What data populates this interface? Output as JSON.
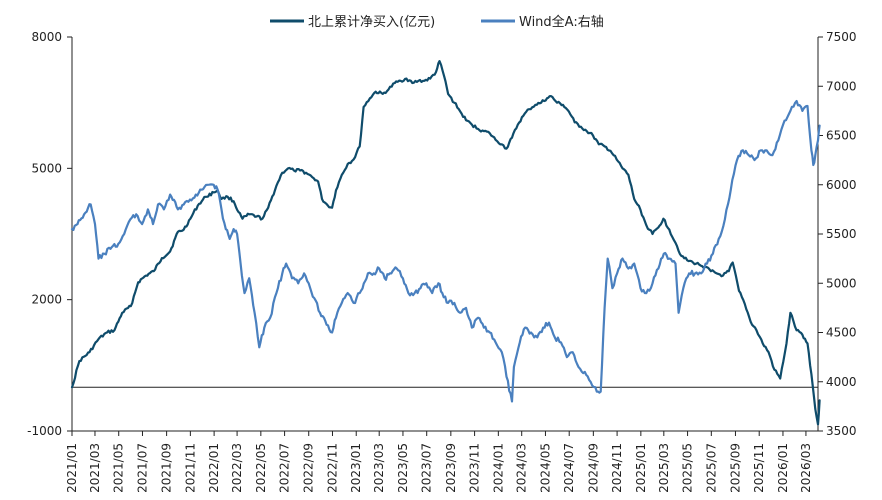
{
  "chart_data": {
    "type": "line",
    "title": "",
    "xlabel": "",
    "ylabel": "",
    "legend_position": "top-center",
    "grid": false,
    "x_start": "2021/01",
    "x_end": "2026/04",
    "x_ticks": [
      "2021/01",
      "2021/03",
      "2021/05",
      "2021/07",
      "2021/09",
      "2021/11",
      "2022/01",
      "2022/03",
      "2022/05",
      "2022/07",
      "2022/09",
      "2022/11",
      "2023/01",
      "2023/03",
      "2023/05",
      "2023/07",
      "2023/09",
      "2023/11",
      "2024/01",
      "2024/03",
      "2024/05",
      "2024/07",
      "2024/09",
      "2024/11",
      "2025/01",
      "2025/03",
      "2025/05",
      "2025/07",
      "2025/09",
      "2025/11",
      "2026/01",
      "2026/03"
    ],
    "y_left": {
      "min": -1000,
      "max": 8000,
      "ticks": [
        -1000,
        2000,
        5000,
        8000
      ]
    },
    "y_right": {
      "min": 3500,
      "max": 7500,
      "ticks": [
        3500,
        4000,
        4500,
        5000,
        5500,
        6000,
        6500,
        7000,
        7500
      ]
    },
    "zero_line": 0,
    "series": [
      {
        "name": "北上累计净买入(亿元)",
        "axis": "left",
        "color": "#0f4c6b",
        "points": [
          [
            "2021-01-01",
            0
          ],
          [
            "2021-01-20",
            600
          ],
          [
            "2021-02-15",
            800
          ],
          [
            "2021-03-10",
            1100
          ],
          [
            "2021-04-01",
            1250
          ],
          [
            "2021-04-20",
            1300
          ],
          [
            "2021-05-10",
            1700
          ],
          [
            "2021-06-01",
            1850
          ],
          [
            "2021-06-20",
            2400
          ],
          [
            "2021-07-10",
            2550
          ],
          [
            "2021-07-30",
            2650
          ],
          [
            "2021-08-20",
            2950
          ],
          [
            "2021-09-10",
            3100
          ],
          [
            "2021-09-30",
            3550
          ],
          [
            "2021-10-15",
            3600
          ],
          [
            "2021-11-01",
            3850
          ],
          [
            "2021-11-20",
            4150
          ],
          [
            "2021-12-10",
            4350
          ],
          [
            "2021-12-31",
            4450
          ],
          [
            "2022-01-10",
            4500
          ],
          [
            "2022-01-20",
            4300
          ],
          [
            "2022-02-05",
            4350
          ],
          [
            "2022-02-20",
            4250
          ],
          [
            "2022-03-05",
            4000
          ],
          [
            "2022-03-15",
            3850
          ],
          [
            "2022-04-01",
            3950
          ],
          [
            "2022-04-20",
            3900
          ],
          [
            "2022-05-05",
            3850
          ],
          [
            "2022-05-20",
            4100
          ],
          [
            "2022-06-10",
            4600
          ],
          [
            "2022-06-25",
            4900
          ],
          [
            "2022-07-10",
            5000
          ],
          [
            "2022-07-25",
            4950
          ],
          [
            "2022-08-10",
            4950
          ],
          [
            "2022-08-25",
            4900
          ],
          [
            "2022-09-10",
            4800
          ],
          [
            "2022-09-25",
            4700
          ],
          [
            "2022-10-05",
            4300
          ],
          [
            "2022-10-20",
            4150
          ],
          [
            "2022-10-31",
            4100
          ],
          [
            "2022-11-10",
            4500
          ],
          [
            "2022-11-25",
            4850
          ],
          [
            "2022-12-10",
            5100
          ],
          [
            "2022-12-25",
            5200
          ],
          [
            "2023-01-10",
            5500
          ],
          [
            "2023-01-20",
            6400
          ],
          [
            "2023-02-05",
            6600
          ],
          [
            "2023-02-20",
            6750
          ],
          [
            "2023-03-10",
            6700
          ],
          [
            "2023-03-25",
            6800
          ],
          [
            "2023-04-10",
            6950
          ],
          [
            "2023-04-25",
            7000
          ],
          [
            "2023-05-10",
            7050
          ],
          [
            "2023-05-25",
            6950
          ],
          [
            "2023-06-10",
            7000
          ],
          [
            "2023-06-25",
            7000
          ],
          [
            "2023-07-10",
            7050
          ],
          [
            "2023-07-25",
            7200
          ],
          [
            "2023-08-03",
            7450
          ],
          [
            "2023-08-15",
            7100
          ],
          [
            "2023-08-25",
            6700
          ],
          [
            "2023-09-10",
            6500
          ],
          [
            "2023-09-25",
            6300
          ],
          [
            "2023-10-10",
            6100
          ],
          [
            "2023-10-25",
            6000
          ],
          [
            "2023-11-10",
            5900
          ],
          [
            "2023-11-25",
            5850
          ],
          [
            "2023-12-10",
            5800
          ],
          [
            "2023-12-25",
            5650
          ],
          [
            "2024-01-10",
            5550
          ],
          [
            "2024-01-22",
            5450
          ],
          [
            "2024-02-05",
            5700
          ],
          [
            "2024-02-20",
            6000
          ],
          [
            "2024-03-05",
            6200
          ],
          [
            "2024-03-20",
            6350
          ],
          [
            "2024-04-05",
            6450
          ],
          [
            "2024-04-20",
            6500
          ],
          [
            "2024-05-05",
            6600
          ],
          [
            "2024-05-15",
            6650
          ],
          [
            "2024-05-31",
            6500
          ],
          [
            "2024-06-15",
            6450
          ],
          [
            "2024-06-30",
            6300
          ],
          [
            "2024-07-15",
            6050
          ],
          [
            "2024-07-31",
            5950
          ],
          [
            "2024-08-15",
            5850
          ],
          [
            "2024-08-31",
            5750
          ],
          [
            "2024-09-15",
            5550
          ],
          [
            "2024-09-30",
            5500
          ],
          [
            "2024-10-15",
            5400
          ],
          [
            "2024-10-31",
            5200
          ],
          [
            "2024-11-15",
            5000
          ],
          [
            "2024-11-30",
            4850
          ],
          [
            "2024-12-15",
            4300
          ],
          [
            "2024-12-31",
            4050
          ],
          [
            "2025-01-15",
            3700
          ],
          [
            "2025-01-31",
            3500
          ],
          [
            "2025-02-15",
            3650
          ],
          [
            "2025-02-28",
            3850
          ],
          [
            "2025-03-15",
            3600
          ],
          [
            "2025-03-31",
            3300
          ],
          [
            "2025-04-15",
            3000
          ],
          [
            "2025-04-30",
            2900
          ],
          [
            "2025-05-15",
            2850
          ],
          [
            "2025-05-31",
            2800
          ],
          [
            "2025-06-15",
            2750
          ],
          [
            "2025-06-30",
            2650
          ],
          [
            "2025-07-15",
            2600
          ],
          [
            "2025-07-31",
            2550
          ],
          [
            "2025-08-15",
            2650
          ],
          [
            "2025-08-25",
            2850
          ],
          [
            "2025-09-10",
            2200
          ],
          [
            "2025-09-25",
            1900
          ],
          [
            "2025-10-10",
            1500
          ],
          [
            "2025-10-25",
            1300
          ],
          [
            "2025-11-10",
            1000
          ],
          [
            "2025-11-25",
            800
          ],
          [
            "2025-12-10",
            400
          ],
          [
            "2025-12-25",
            200
          ],
          [
            "2026-01-10",
            1000
          ],
          [
            "2026-01-20",
            1700
          ],
          [
            "2026-02-05",
            1300
          ],
          [
            "2026-02-20",
            1200
          ],
          [
            "2026-03-05",
            1000
          ],
          [
            "2026-03-15",
            300
          ],
          [
            "2026-03-25",
            -500
          ],
          [
            "2026-04-01",
            -850
          ],
          [
            "2026-04-05",
            -300
          ]
        ]
      },
      {
        "name": "Wind全A:右轴",
        "axis": "right",
        "color": "#4a80bf",
        "points": [
          [
            "2021-01-01",
            5550
          ],
          [
            "2021-01-15",
            5600
          ],
          [
            "2021-02-01",
            5700
          ],
          [
            "2021-02-18",
            5800
          ],
          [
            "2021-03-01",
            5600
          ],
          [
            "2021-03-10",
            5250
          ],
          [
            "2021-03-25",
            5300
          ],
          [
            "2021-04-10",
            5350
          ],
          [
            "2021-04-30",
            5400
          ],
          [
            "2021-05-15",
            5500
          ],
          [
            "2021-05-31",
            5650
          ],
          [
            "2021-06-15",
            5700
          ],
          [
            "2021-06-30",
            5600
          ],
          [
            "2021-07-15",
            5750
          ],
          [
            "2021-07-28",
            5600
          ],
          [
            "2021-08-10",
            5800
          ],
          [
            "2021-08-25",
            5750
          ],
          [
            "2021-09-10",
            5900
          ],
          [
            "2021-09-30",
            5750
          ],
          [
            "2021-10-15",
            5800
          ],
          [
            "2021-10-31",
            5850
          ],
          [
            "2021-11-15",
            5900
          ],
          [
            "2021-11-30",
            5950
          ],
          [
            "2021-12-15",
            6000
          ],
          [
            "2021-12-31",
            6000
          ],
          [
            "2022-01-10",
            5950
          ],
          [
            "2022-01-20",
            5750
          ],
          [
            "2022-01-31",
            5550
          ],
          [
            "2022-02-10",
            5450
          ],
          [
            "2022-02-20",
            5550
          ],
          [
            "2022-03-01",
            5500
          ],
          [
            "2022-03-10",
            5200
          ],
          [
            "2022-03-20",
            4900
          ],
          [
            "2022-04-01",
            5050
          ],
          [
            "2022-04-15",
            4700
          ],
          [
            "2022-04-27",
            4350
          ],
          [
            "2022-05-10",
            4550
          ],
          [
            "2022-05-25",
            4650
          ],
          [
            "2022-06-10",
            4900
          ],
          [
            "2022-06-25",
            5100
          ],
          [
            "2022-07-05",
            5200
          ],
          [
            "2022-07-20",
            5050
          ],
          [
            "2022-08-05",
            5000
          ],
          [
            "2022-08-20",
            5100
          ],
          [
            "2022-09-01",
            5000
          ],
          [
            "2022-09-15",
            4850
          ],
          [
            "2022-09-30",
            4700
          ],
          [
            "2022-10-10",
            4650
          ],
          [
            "2022-10-31",
            4500
          ],
          [
            "2022-11-10",
            4650
          ],
          [
            "2022-11-25",
            4800
          ],
          [
            "2022-12-10",
            4900
          ],
          [
            "2022-12-25",
            4800
          ],
          [
            "2023-01-10",
            4900
          ],
          [
            "2023-01-31",
            5100
          ],
          [
            "2023-02-15",
            5100
          ],
          [
            "2023-03-01",
            5150
          ],
          [
            "2023-03-15",
            5050
          ],
          [
            "2023-04-01",
            5100
          ],
          [
            "2023-04-15",
            5150
          ],
          [
            "2023-05-01",
            5050
          ],
          [
            "2023-05-15",
            4900
          ],
          [
            "2023-05-31",
            4900
          ],
          [
            "2023-06-15",
            4950
          ],
          [
            "2023-06-30",
            5000
          ],
          [
            "2023-07-15",
            4900
          ],
          [
            "2023-07-31",
            5000
          ],
          [
            "2023-08-10",
            4900
          ],
          [
            "2023-08-25",
            4800
          ],
          [
            "2023-09-10",
            4800
          ],
          [
            "2023-09-25",
            4700
          ],
          [
            "2023-10-10",
            4750
          ],
          [
            "2023-10-25",
            4550
          ],
          [
            "2023-11-10",
            4650
          ],
          [
            "2023-11-25",
            4550
          ],
          [
            "2023-12-10",
            4500
          ],
          [
            "2023-12-25",
            4400
          ],
          [
            "2024-01-10",
            4300
          ],
          [
            "2024-01-22",
            4050
          ],
          [
            "2024-02-05",
            3800
          ],
          [
            "2024-02-10",
            4150
          ],
          [
            "2024-02-25",
            4400
          ],
          [
            "2024-03-10",
            4550
          ],
          [
            "2024-03-25",
            4500
          ],
          [
            "2024-04-10",
            4450
          ],
          [
            "2024-04-25",
            4550
          ],
          [
            "2024-05-10",
            4600
          ],
          [
            "2024-05-25",
            4450
          ],
          [
            "2024-06-10",
            4400
          ],
          [
            "2024-06-25",
            4250
          ],
          [
            "2024-07-10",
            4300
          ],
          [
            "2024-07-25",
            4150
          ],
          [
            "2024-08-10",
            4100
          ],
          [
            "2024-08-25",
            4000
          ],
          [
            "2024-09-10",
            3900
          ],
          [
            "2024-09-20",
            3900
          ],
          [
            "2024-09-30",
            4750
          ],
          [
            "2024-10-08",
            5250
          ],
          [
            "2024-10-20",
            4950
          ],
          [
            "2024-11-01",
            5100
          ],
          [
            "2024-11-15",
            5250
          ],
          [
            "2024-11-30",
            5150
          ],
          [
            "2024-12-15",
            5200
          ],
          [
            "2024-12-31",
            4950
          ],
          [
            "2025-01-15",
            4900
          ],
          [
            "2025-01-31",
            5000
          ],
          [
            "2025-02-15",
            5150
          ],
          [
            "2025-03-01",
            5300
          ],
          [
            "2025-03-15",
            5250
          ],
          [
            "2025-03-31",
            5200
          ],
          [
            "2025-04-08",
            4700
          ],
          [
            "2025-04-20",
            4950
          ],
          [
            "2025-05-05",
            5100
          ],
          [
            "2025-05-20",
            5100
          ],
          [
            "2025-06-05",
            5100
          ],
          [
            "2025-06-20",
            5200
          ],
          [
            "2025-07-05",
            5300
          ],
          [
            "2025-07-20",
            5450
          ],
          [
            "2025-08-05",
            5650
          ],
          [
            "2025-08-20",
            5950
          ],
          [
            "2025-09-05",
            6250
          ],
          [
            "2025-09-20",
            6350
          ],
          [
            "2025-10-05",
            6300
          ],
          [
            "2025-10-20",
            6250
          ],
          [
            "2025-11-05",
            6350
          ],
          [
            "2025-11-20",
            6350
          ],
          [
            "2025-12-05",
            6300
          ],
          [
            "2025-12-20",
            6450
          ],
          [
            "2026-01-05",
            6650
          ],
          [
            "2026-01-20",
            6750
          ],
          [
            "2026-02-05",
            6850
          ],
          [
            "2026-02-20",
            6750
          ],
          [
            "2026-03-05",
            6800
          ],
          [
            "2026-03-15",
            6350
          ],
          [
            "2026-03-20",
            6200
          ],
          [
            "2026-03-25",
            6300
          ],
          [
            "2026-04-01",
            6450
          ],
          [
            "2026-04-05",
            6600
          ]
        ]
      }
    ]
  }
}
